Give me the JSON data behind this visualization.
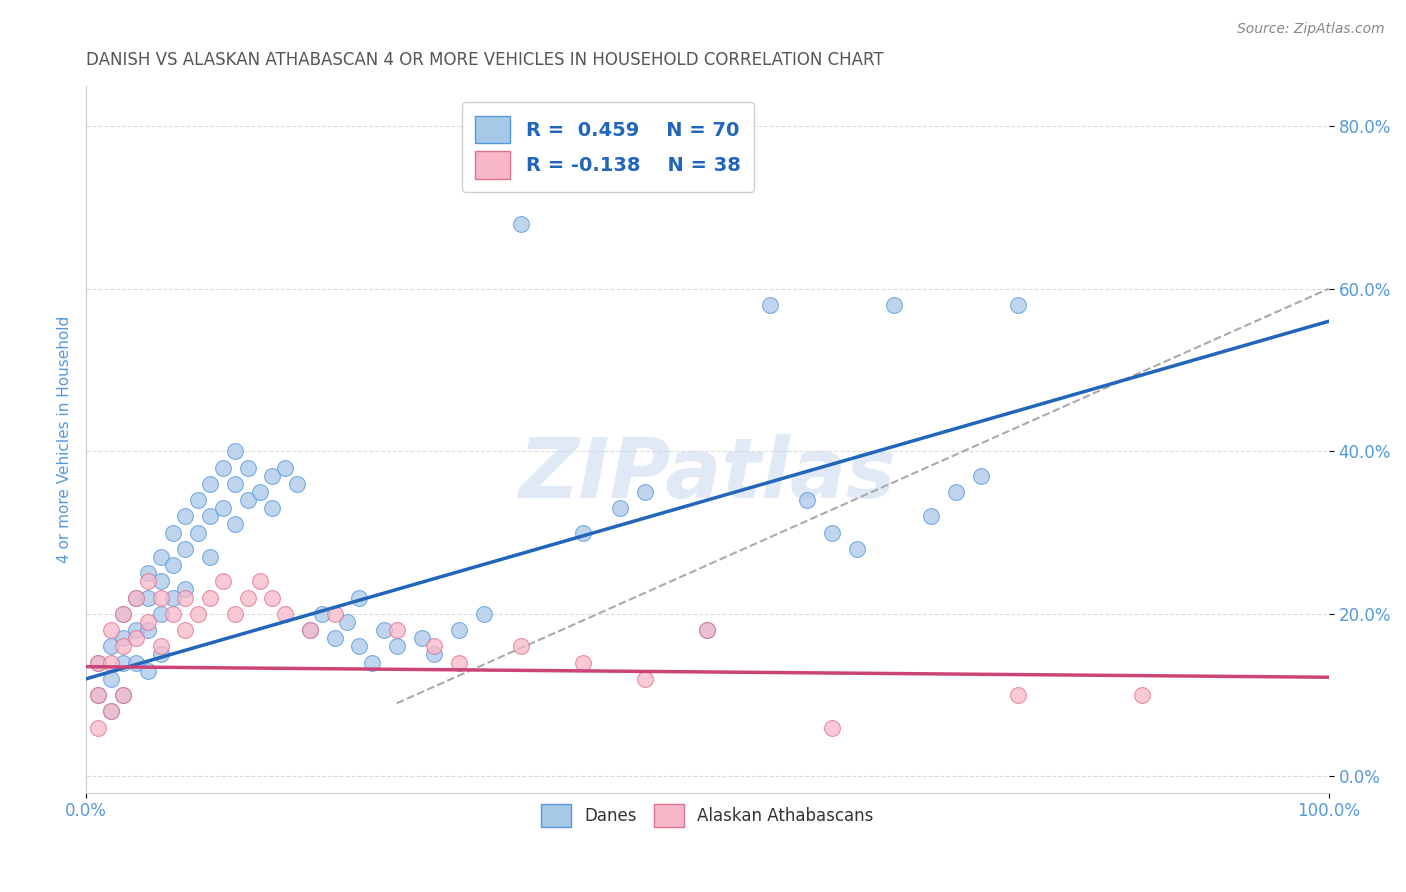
{
  "title": "DANISH VS ALASKAN ATHABASCAN 4 OR MORE VEHICLES IN HOUSEHOLD CORRELATION CHART",
  "source": "Source: ZipAtlas.com",
  "ylabel": "4 or more Vehicles in Household",
  "xlim": [
    0,
    100
  ],
  "ylim": [
    -2,
    85
  ],
  "yticks": [
    0,
    20,
    40,
    60,
    80
  ],
  "ytick_labels": [
    "0.0%",
    "20.0%",
    "40.0%",
    "60.0%",
    "80.0%"
  ],
  "danes_R": 0.459,
  "danes_N": 70,
  "athabascan_R": -0.138,
  "athabascan_N": 38,
  "danes_fill_color": "#a8c8e8",
  "danes_edge_color": "#5599dd",
  "athabascan_fill_color": "#f8b8c8",
  "athabascan_edge_color": "#e07090",
  "danes_line_color": "#2266bb",
  "athabascan_line_color": "#cc4477",
  "danes_line_intercept": 12.0,
  "danes_line_slope": 0.44,
  "ath_line_intercept": 13.5,
  "ath_line_slope": -0.013,
  "dash_line_intercept": -8.0,
  "dash_line_slope": 0.68,
  "watermark_text": "ZIPatlas",
  "background_color": "#ffffff",
  "grid_color": "#dddddd",
  "title_color": "#555555",
  "axis_label_color": "#5599dd",
  "legend_text_color": "#2266bb",
  "danes_scatter_x": [
    1,
    1,
    2,
    2,
    2,
    3,
    3,
    3,
    3,
    4,
    4,
    4,
    5,
    5,
    5,
    5,
    6,
    6,
    6,
    6,
    7,
    7,
    7,
    8,
    8,
    8,
    9,
    9,
    10,
    10,
    10,
    11,
    11,
    12,
    12,
    12,
    13,
    13,
    14,
    15,
    15,
    16,
    17,
    18,
    19,
    20,
    21,
    22,
    22,
    23,
    24,
    25,
    27,
    28,
    30,
    32,
    35,
    40,
    43,
    45,
    50,
    55,
    58,
    60,
    62,
    65,
    68,
    70,
    72,
    75
  ],
  "danes_scatter_y": [
    14,
    10,
    16,
    12,
    8,
    20,
    17,
    14,
    10,
    22,
    18,
    14,
    25,
    22,
    18,
    13,
    27,
    24,
    20,
    15,
    30,
    26,
    22,
    32,
    28,
    23,
    34,
    30,
    36,
    32,
    27,
    38,
    33,
    40,
    36,
    31,
    38,
    34,
    35,
    37,
    33,
    38,
    36,
    18,
    20,
    17,
    19,
    16,
    22,
    14,
    18,
    16,
    17,
    15,
    18,
    20,
    68,
    30,
    33,
    35,
    18,
    58,
    34,
    30,
    28,
    58,
    32,
    35,
    37,
    58
  ],
  "ath_scatter_x": [
    1,
    1,
    1,
    2,
    2,
    2,
    3,
    3,
    3,
    4,
    4,
    5,
    5,
    6,
    6,
    7,
    8,
    8,
    9,
    10,
    11,
    12,
    13,
    14,
    15,
    16,
    18,
    20,
    25,
    28,
    30,
    35,
    40,
    45,
    50,
    60,
    75,
    85
  ],
  "ath_scatter_y": [
    14,
    10,
    6,
    18,
    14,
    8,
    20,
    16,
    10,
    22,
    17,
    24,
    19,
    22,
    16,
    20,
    22,
    18,
    20,
    22,
    24,
    20,
    22,
    24,
    22,
    20,
    18,
    20,
    18,
    16,
    14,
    16,
    14,
    12,
    18,
    6,
    10,
    10
  ]
}
